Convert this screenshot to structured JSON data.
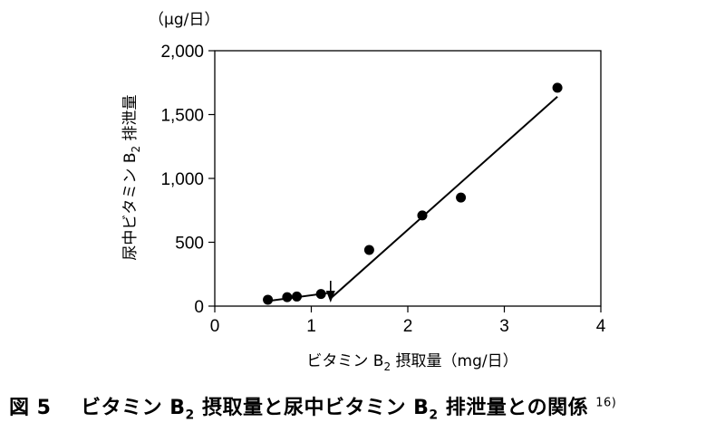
{
  "chart_data": {
    "type": "scatter",
    "y_unit": "（μg/日）",
    "ylabel": {
      "pre": "尿中ビタミン B",
      "sub": "2",
      "post": " 排泄量"
    },
    "xlabel": {
      "pre": "ビタミン B",
      "sub": "2",
      "post": " 摂取量（mg/日）"
    },
    "xlim": [
      0,
      4
    ],
    "ylim": [
      0,
      2000
    ],
    "x_ticks": [
      {
        "value": 0,
        "label": "0"
      },
      {
        "value": 1,
        "label": "1"
      },
      {
        "value": 2,
        "label": "2"
      },
      {
        "value": 3,
        "label": "3"
      },
      {
        "value": 4,
        "label": "4"
      }
    ],
    "y_ticks": [
      {
        "value": 0,
        "label": "0"
      },
      {
        "value": 500,
        "label": "500"
      },
      {
        "value": 1000,
        "label": "1,000"
      },
      {
        "value": 1500,
        "label": "1,500"
      },
      {
        "value": 2000,
        "label": "2,000"
      }
    ],
    "points": [
      {
        "x": 0.55,
        "y": 50
      },
      {
        "x": 0.75,
        "y": 70
      },
      {
        "x": 0.85,
        "y": 75
      },
      {
        "x": 1.1,
        "y": 95
      },
      {
        "x": 1.6,
        "y": 440
      },
      {
        "x": 2.15,
        "y": 710
      },
      {
        "x": 2.55,
        "y": 850
      },
      {
        "x": 3.55,
        "y": 1710
      }
    ],
    "fit_lines": [
      {
        "from": [
          0.55,
          40
        ],
        "to": [
          1.2,
          105
        ]
      },
      {
        "from": [
          1.2,
          60
        ],
        "to": [
          3.55,
          1640
        ]
      }
    ],
    "breakpoint_x": 1.2,
    "grid": false
  },
  "caption": {
    "fig": "図 5",
    "title_pre": "ビタミン B",
    "sub1": "2",
    "title_mid": " 摂取量と尿中ビタミン B",
    "sub2": "2",
    "title_post": " 排泄量との関係",
    "ref": "16)"
  }
}
